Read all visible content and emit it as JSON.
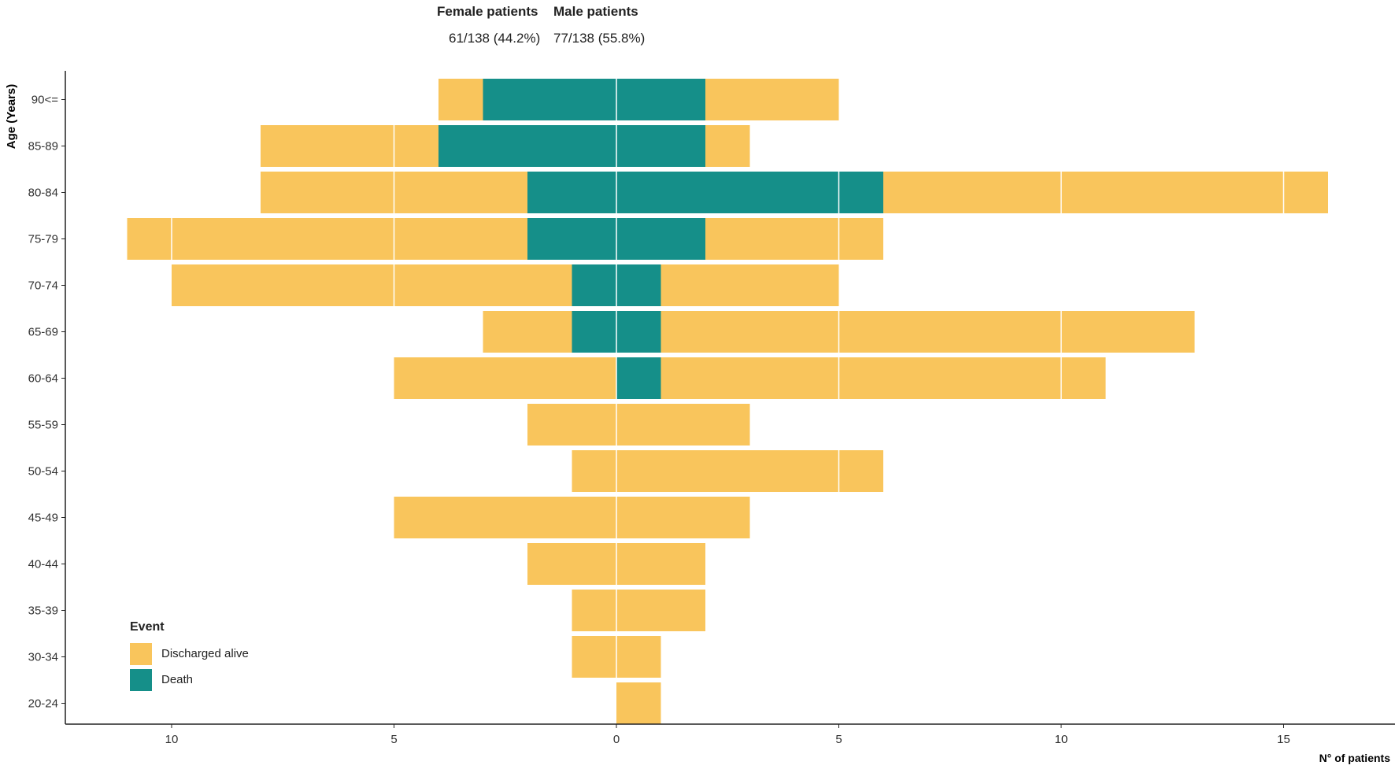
{
  "headers": {
    "female_title": "Female patients",
    "male_title": "Male patients",
    "female_count": "61/138 (44.2%)",
    "male_count": "77/138 (55.8%)"
  },
  "colors": {
    "discharged": "#F9C55C",
    "death": "#158F89",
    "axis": "#222222",
    "background": "#FFFFFF"
  },
  "chart_data": {
    "type": "bar",
    "orientation": "horizontal-population-pyramid",
    "ylabel": "Age (Years)",
    "xlabel": "N° of patients",
    "xlim": [
      -12.5,
      17
    ],
    "xticks": [
      -10,
      -5,
      0,
      5,
      10,
      15
    ],
    "xtick_labels": [
      "10",
      "5",
      "0",
      "5",
      "10",
      "15"
    ],
    "categories": [
      "90<=",
      "85-89",
      "80-84",
      "75-79",
      "70-74",
      "65-69",
      "60-64",
      "55-59",
      "50-54",
      "45-49",
      "40-44",
      "35-39",
      "30-34",
      "20-24"
    ],
    "female": {
      "death": [
        3,
        4,
        2,
        2,
        1,
        1,
        0,
        0,
        0,
        0,
        0,
        0,
        0,
        0
      ],
      "discharged_alive": [
        1,
        4,
        6,
        9,
        9,
        2,
        5,
        2,
        1,
        5,
        2,
        1,
        1,
        0
      ]
    },
    "male": {
      "death": [
        2,
        2,
        6,
        2,
        1,
        1,
        1,
        0,
        0,
        0,
        0,
        0,
        0,
        0
      ],
      "discharged_alive": [
        3,
        1,
        10,
        4,
        4,
        12,
        10,
        3,
        6,
        3,
        2,
        2,
        1,
        1
      ]
    },
    "legend": {
      "title": "Event",
      "items": [
        {
          "label": "Discharged alive",
          "key": "discharged"
        },
        {
          "label": "Death",
          "key": "death"
        }
      ],
      "position": "bottom-left"
    }
  }
}
